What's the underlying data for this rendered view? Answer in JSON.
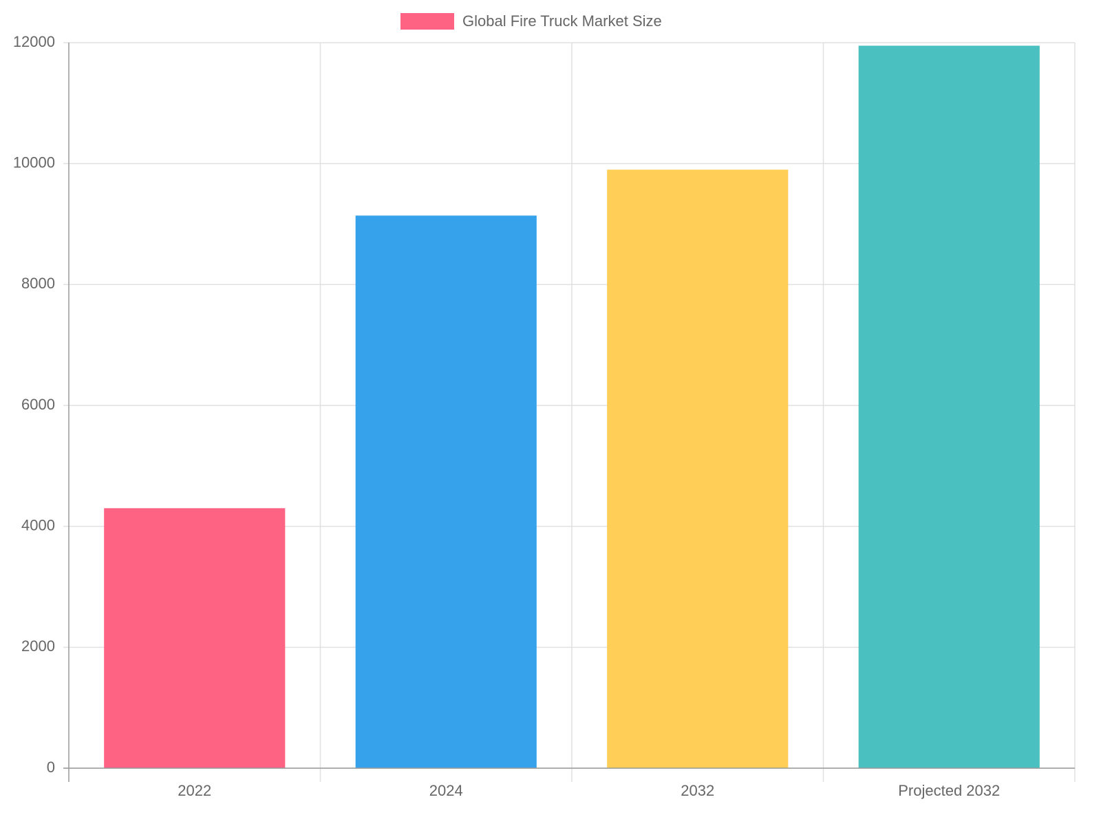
{
  "chart_data": {
    "type": "bar",
    "series": [
      {
        "name": "Global Fire Truck Market Size",
        "colors": [
          "#ff6384",
          "#36a2eb",
          "#ffce56",
          "#4bc0c0"
        ],
        "values": [
          4300,
          9140,
          9900,
          11950
        ]
      }
    ],
    "categories": [
      "2022",
      "2024",
      "2032",
      "Projected 2032"
    ],
    "ylim": [
      0,
      12000
    ],
    "yticks": [
      0,
      2000,
      4000,
      6000,
      8000,
      10000,
      12000
    ],
    "grid": true,
    "legend": "top"
  }
}
